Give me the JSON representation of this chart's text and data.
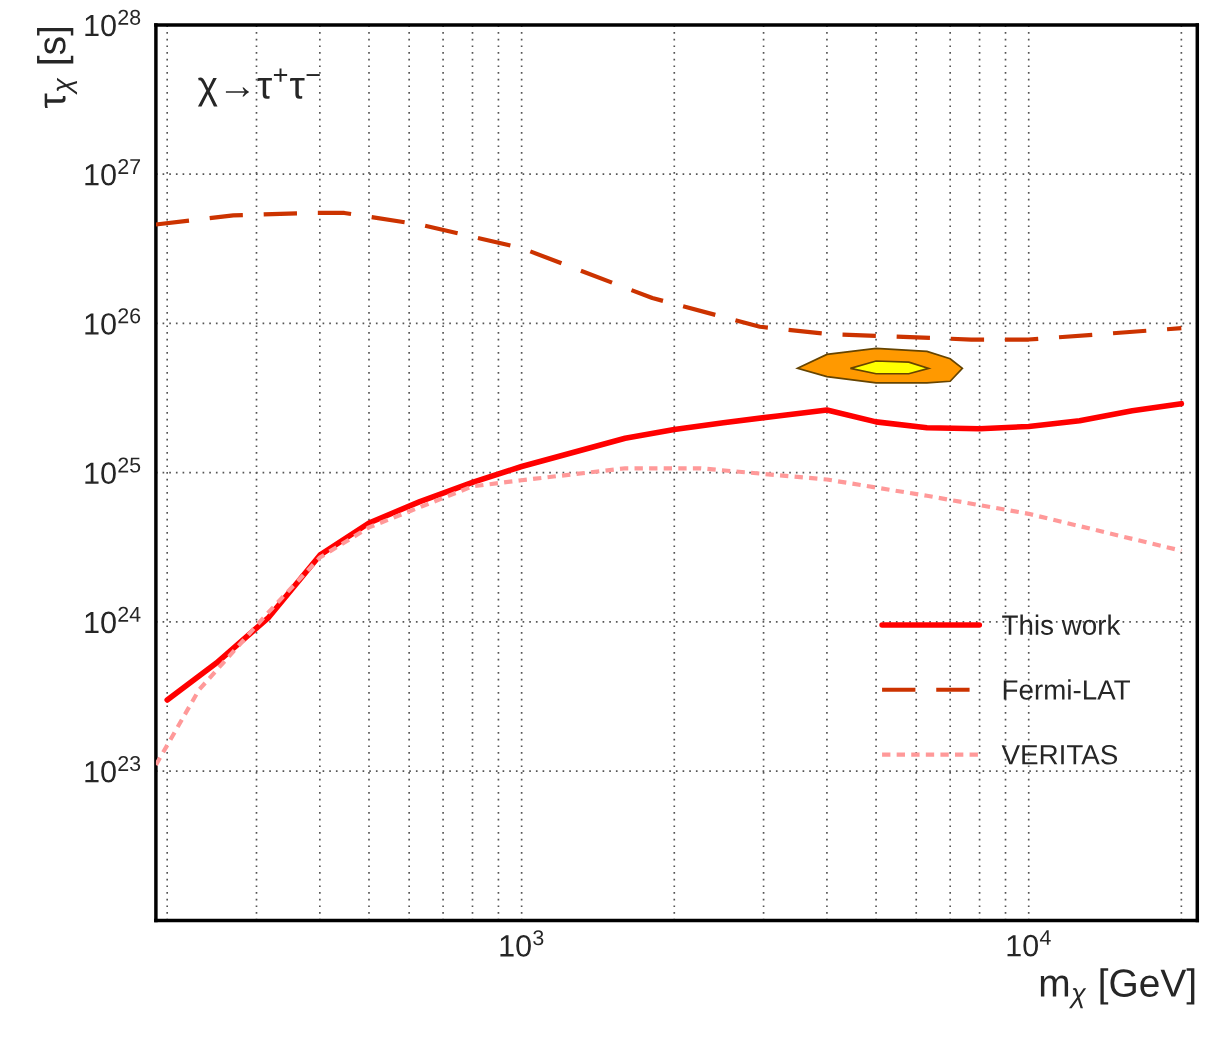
{
  "chart_data": {
    "type": "line",
    "xlabel": "m$_{χ}$ [GeV]",
    "ylabel": "τ$_{χ}$ [s]",
    "annotations": [
      "χ→τ$^{+}$τ$^{−}$"
    ],
    "log": "xy",
    "grid": true,
    "legend": "bottom right",
    "xlim": [
      190,
      21500
    ],
    "ylim": [
      1e+22,
      1e+28
    ],
    "xticks": [
      {
        "value": 200,
        "label": null
      },
      {
        "value": 300,
        "label": null
      },
      {
        "value": 400,
        "label": null
      },
      {
        "value": 500,
        "label": null
      },
      {
        "value": 600,
        "label": null
      },
      {
        "value": 700,
        "label": null
      },
      {
        "value": 800,
        "label": null
      },
      {
        "value": 900,
        "label": null
      },
      {
        "value": 1000,
        "label": "10$^{3}$"
      },
      {
        "value": 2000,
        "label": null
      },
      {
        "value": 3000,
        "label": null
      },
      {
        "value": 4000,
        "label": null
      },
      {
        "value": 5000,
        "label": null
      },
      {
        "value": 6000,
        "label": null
      },
      {
        "value": 7000,
        "label": null
      },
      {
        "value": 8000,
        "label": null
      },
      {
        "value": 9000,
        "label": null
      },
      {
        "value": 10000,
        "label": "10$^{4}$"
      },
      {
        "value": 20000,
        "label": null
      }
    ],
    "yticks": [
      {
        "value": 1e+23,
        "label": "10$^{23}$"
      },
      {
        "value": 1e+24,
        "label": "10$^{24}$"
      },
      {
        "value": 1e+25,
        "label": "10$^{25}$"
      },
      {
        "value": 1e+26,
        "label": "10$^{26}$"
      },
      {
        "value": 1e+27,
        "label": "10$^{27}$"
      },
      {
        "value": 1e+28,
        "label": "10$^{28}$"
      }
    ],
    "series": [
      {
        "name": "This work",
        "color": "#ff0000",
        "line_style": "solid",
        "x": [
          200,
          250,
          316,
          400,
          500,
          630,
          800,
          1000,
          1600,
          2000,
          2500,
          3200,
          4000,
          5000,
          6300,
          8000,
          10000,
          12600,
          16000,
          20000
        ],
        "values": [
          3e+23,
          5.3e+23,
          1.06e+24,
          2.8e+24,
          4.6e+24,
          6.4e+24,
          8.6e+24,
          1.1e+25,
          1.7e+25,
          1.95e+25,
          2.16e+25,
          2.4e+25,
          2.63e+25,
          2.19e+25,
          2e+25,
          1.97e+25,
          2.04e+25,
          2.23e+25,
          2.6e+25,
          2.9e+25
        ]
      },
      {
        "name": "Fermi-LAT",
        "color": "#cc3300",
        "line_style": "dashed",
        "x": [
          190,
          270,
          381,
          447,
          630,
          1000,
          1810,
          2950,
          4000,
          7700,
          10000,
          20000
        ],
        "values": [
          4.6e+26,
          5.3e+26,
          5.5e+26,
          5.5e+26,
          4.6e+26,
          3.2e+26,
          1.48e+26,
          9.5e+25,
          8.5e+25,
          7.8e+25,
          7.8e+25,
          9.3e+25
        ]
      },
      {
        "name": "VERITAS",
        "color": "#ff9999",
        "line_style": "dotted",
        "x": [
          190,
          231,
          316,
          400,
          500,
          800,
          1000,
          1600,
          2250,
          4000,
          6300,
          10000,
          20000
        ],
        "values": [
          1.1e+23,
          3.5e+23,
          1.15e+24,
          2.7e+24,
          4.3e+24,
          8.1e+24,
          8.9e+24,
          1.07e+25,
          1.07e+25,
          9e+24,
          7e+24,
          5.3e+24,
          3e+24
        ]
      },
      {
        "type": "area",
        "color": "#ff9900",
        "x": [
          3500,
          4000,
          5000,
          6300,
          7000,
          7400,
          7000,
          6300,
          5000,
          4000
        ],
        "values": [
          5e+25,
          6.2e+25,
          6.8e+25,
          6.5e+25,
          5.8e+25,
          5e+25,
          4.1e+25,
          4e+25,
          4e+25,
          4.4e+25
        ]
      },
      {
        "type": "area",
        "color": "#ffff00",
        "x": [
          4450,
          5000,
          5800,
          6350,
          5800,
          5000
        ],
        "values": [
          5e+25,
          5.6e+25,
          5.5e+25,
          5e+25,
          4.6e+25,
          4.6e+25
        ]
      }
    ]
  }
}
